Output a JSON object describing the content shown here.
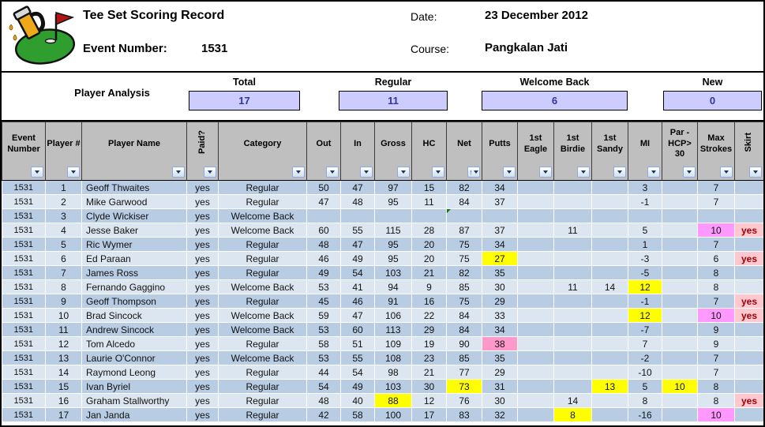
{
  "header": {
    "title": "Tee Set Scoring Record",
    "event_number_label": "Event Number:",
    "event_number": "1531",
    "date_label": "Date:",
    "date_value": "23 December 2012",
    "course_label": "Course:",
    "course_value": "Pangkalan Jati",
    "logo_icon": "golf-green-flag-beer-mug"
  },
  "analysis": {
    "label": "Player Analysis",
    "stats": [
      {
        "label": "Total",
        "value": "17"
      },
      {
        "label": "Regular",
        "value": "11"
      },
      {
        "label": "Welcome Back",
        "value": "6"
      },
      {
        "label": "New",
        "value": "0"
      }
    ]
  },
  "colors": {
    "row_dark": "#B8CCE4",
    "row_light": "#DCE6F1",
    "header_gray": "#BFBFBF",
    "analysis_box": "#CCCCFF",
    "analysis_value_text": "#333399",
    "highlight_yellow": "#FFFF00",
    "highlight_magenta": "#FF99FF",
    "highlight_rose": "#FF99CC",
    "skirt_bg": "#FFC7CE",
    "skirt_text": "#9C0006"
  },
  "table": {
    "columns": [
      {
        "label": "Event Number"
      },
      {
        "label": "Player #"
      },
      {
        "label": "Player Name"
      },
      {
        "label": "Paid?",
        "vertical": true
      },
      {
        "label": "Category"
      },
      {
        "label": "Out"
      },
      {
        "label": "In"
      },
      {
        "label": "Gross"
      },
      {
        "label": "HC"
      },
      {
        "label": "Net"
      },
      {
        "label": "Putts"
      },
      {
        "label": "1st Eagle"
      },
      {
        "label": "1st Birdie"
      },
      {
        "label": "1st Sandy"
      },
      {
        "label": "MI"
      },
      {
        "label": "Par - HCP> 30"
      },
      {
        "label": "Max Strokes"
      },
      {
        "label": "Skirt",
        "vertical": true
      }
    ],
    "column_keys": [
      "event_number",
      "player_num",
      "player_name",
      "paid",
      "category",
      "out",
      "in",
      "gross",
      "hc",
      "net",
      "putts",
      "first_eagle",
      "first_birdie",
      "first_sandy",
      "mi",
      "par_hcp_30",
      "max_strokes",
      "skirt"
    ],
    "sort_indicator_column": 9,
    "filter_icon": "dropdown-arrow",
    "sort_icon": "up-arrow",
    "rows": [
      {
        "cells": [
          "1531",
          "1",
          "Geoff Thwaites",
          "yes",
          "Regular",
          "50",
          "47",
          "97",
          "15",
          "82",
          "34",
          "",
          "",
          "",
          "3",
          "",
          "7",
          ""
        ],
        "hl": {}
      },
      {
        "cells": [
          "1531",
          "2",
          "Mike Garwood",
          "yes",
          "Regular",
          "47",
          "48",
          "95",
          "11",
          "84",
          "37",
          "",
          "",
          "",
          "-1",
          "",
          "7",
          ""
        ],
        "hl": {}
      },
      {
        "cells": [
          "1531",
          "3",
          "Clyde Wickiser",
          "yes",
          "Welcome Back",
          "",
          "",
          "",
          "",
          "",
          "",
          "",
          "",
          "",
          "",
          "",
          "",
          ""
        ],
        "hl": {},
        "note_cell": 9
      },
      {
        "cells": [
          "1531",
          "4",
          "Jesse Baker",
          "yes",
          "Welcome Back",
          "60",
          "55",
          "115",
          "28",
          "87",
          "37",
          "",
          "11",
          "",
          "5",
          "",
          "10",
          "yes"
        ],
        "hl": {
          "16": "magenta",
          "17": "skirt"
        }
      },
      {
        "cells": [
          "1531",
          "5",
          "Ric Wymer",
          "yes",
          "Regular",
          "48",
          "47",
          "95",
          "20",
          "75",
          "34",
          "",
          "",
          "",
          "1",
          "",
          "7",
          ""
        ],
        "hl": {}
      },
      {
        "cells": [
          "1531",
          "6",
          "Ed Paraan",
          "yes",
          "Regular",
          "46",
          "49",
          "95",
          "20",
          "75",
          "27",
          "",
          "",
          "",
          "-3",
          "",
          "6",
          "yes"
        ],
        "hl": {
          "10": "yellow",
          "17": "skirt"
        }
      },
      {
        "cells": [
          "1531",
          "7",
          "James Ross",
          "yes",
          "Regular",
          "49",
          "54",
          "103",
          "21",
          "82",
          "35",
          "",
          "",
          "",
          "-5",
          "",
          "8",
          ""
        ],
        "hl": {}
      },
      {
        "cells": [
          "1531",
          "8",
          "Fernando Gaggino",
          "yes",
          "Welcome Back",
          "53",
          "41",
          "94",
          "9",
          "85",
          "30",
          "",
          "11",
          "14",
          "12",
          "",
          "8",
          ""
        ],
        "hl": {
          "14": "yellow"
        }
      },
      {
        "cells": [
          "1531",
          "9",
          "Geoff Thompson",
          "yes",
          "Regular",
          "45",
          "46",
          "91",
          "16",
          "75",
          "29",
          "",
          "",
          "",
          "-1",
          "",
          "7",
          "yes"
        ],
        "hl": {
          "17": "skirt"
        }
      },
      {
        "cells": [
          "1531",
          "10",
          "Brad Sincock",
          "yes",
          "Welcome Back",
          "59",
          "47",
          "106",
          "22",
          "84",
          "33",
          "",
          "",
          "",
          "12",
          "",
          "10",
          "yes"
        ],
        "hl": {
          "14": "yellow",
          "16": "magenta",
          "17": "skirt"
        }
      },
      {
        "cells": [
          "1531",
          "11",
          "Andrew Sincock",
          "yes",
          "Welcome Back",
          "53",
          "60",
          "113",
          "29",
          "84",
          "34",
          "",
          "",
          "",
          "-7",
          "",
          "9",
          ""
        ],
        "hl": {}
      },
      {
        "cells": [
          "1531",
          "12",
          "Tom Alcedo",
          "yes",
          "Regular",
          "58",
          "51",
          "109",
          "19",
          "90",
          "38",
          "",
          "",
          "",
          "7",
          "",
          "9",
          ""
        ],
        "hl": {
          "10": "rose"
        }
      },
      {
        "cells": [
          "1531",
          "13",
          "Laurie O'Connor",
          "yes",
          "Welcome Back",
          "53",
          "55",
          "108",
          "23",
          "85",
          "35",
          "",
          "",
          "",
          "-2",
          "",
          "7",
          ""
        ],
        "hl": {}
      },
      {
        "cells": [
          "1531",
          "14",
          "Raymond Leong",
          "yes",
          "Regular",
          "44",
          "54",
          "98",
          "21",
          "77",
          "29",
          "",
          "",
          "",
          "-10",
          "",
          "7",
          ""
        ],
        "hl": {}
      },
      {
        "cells": [
          "1531",
          "15",
          "Ivan Byriel",
          "yes",
          "Regular",
          "54",
          "49",
          "103",
          "30",
          "73",
          "31",
          "",
          "",
          "13",
          "5",
          "10",
          "8",
          ""
        ],
        "hl": {
          "9": "yellow",
          "13": "yellow",
          "15": "yellow"
        }
      },
      {
        "cells": [
          "1531",
          "16",
          "Graham Stallworthy",
          "yes",
          "Regular",
          "48",
          "40",
          "88",
          "12",
          "76",
          "30",
          "",
          "14",
          "",
          "8",
          "",
          "8",
          "yes"
        ],
        "hl": {
          "7": "yellow",
          "17": "skirt"
        }
      },
      {
        "cells": [
          "1531",
          "17",
          "Jan Janda",
          "yes",
          "Regular",
          "42",
          "58",
          "100",
          "17",
          "83",
          "32",
          "",
          "8",
          "",
          "-16",
          "",
          "10",
          ""
        ],
        "hl": {
          "12": "yellow",
          "16": "magenta"
        }
      }
    ]
  }
}
